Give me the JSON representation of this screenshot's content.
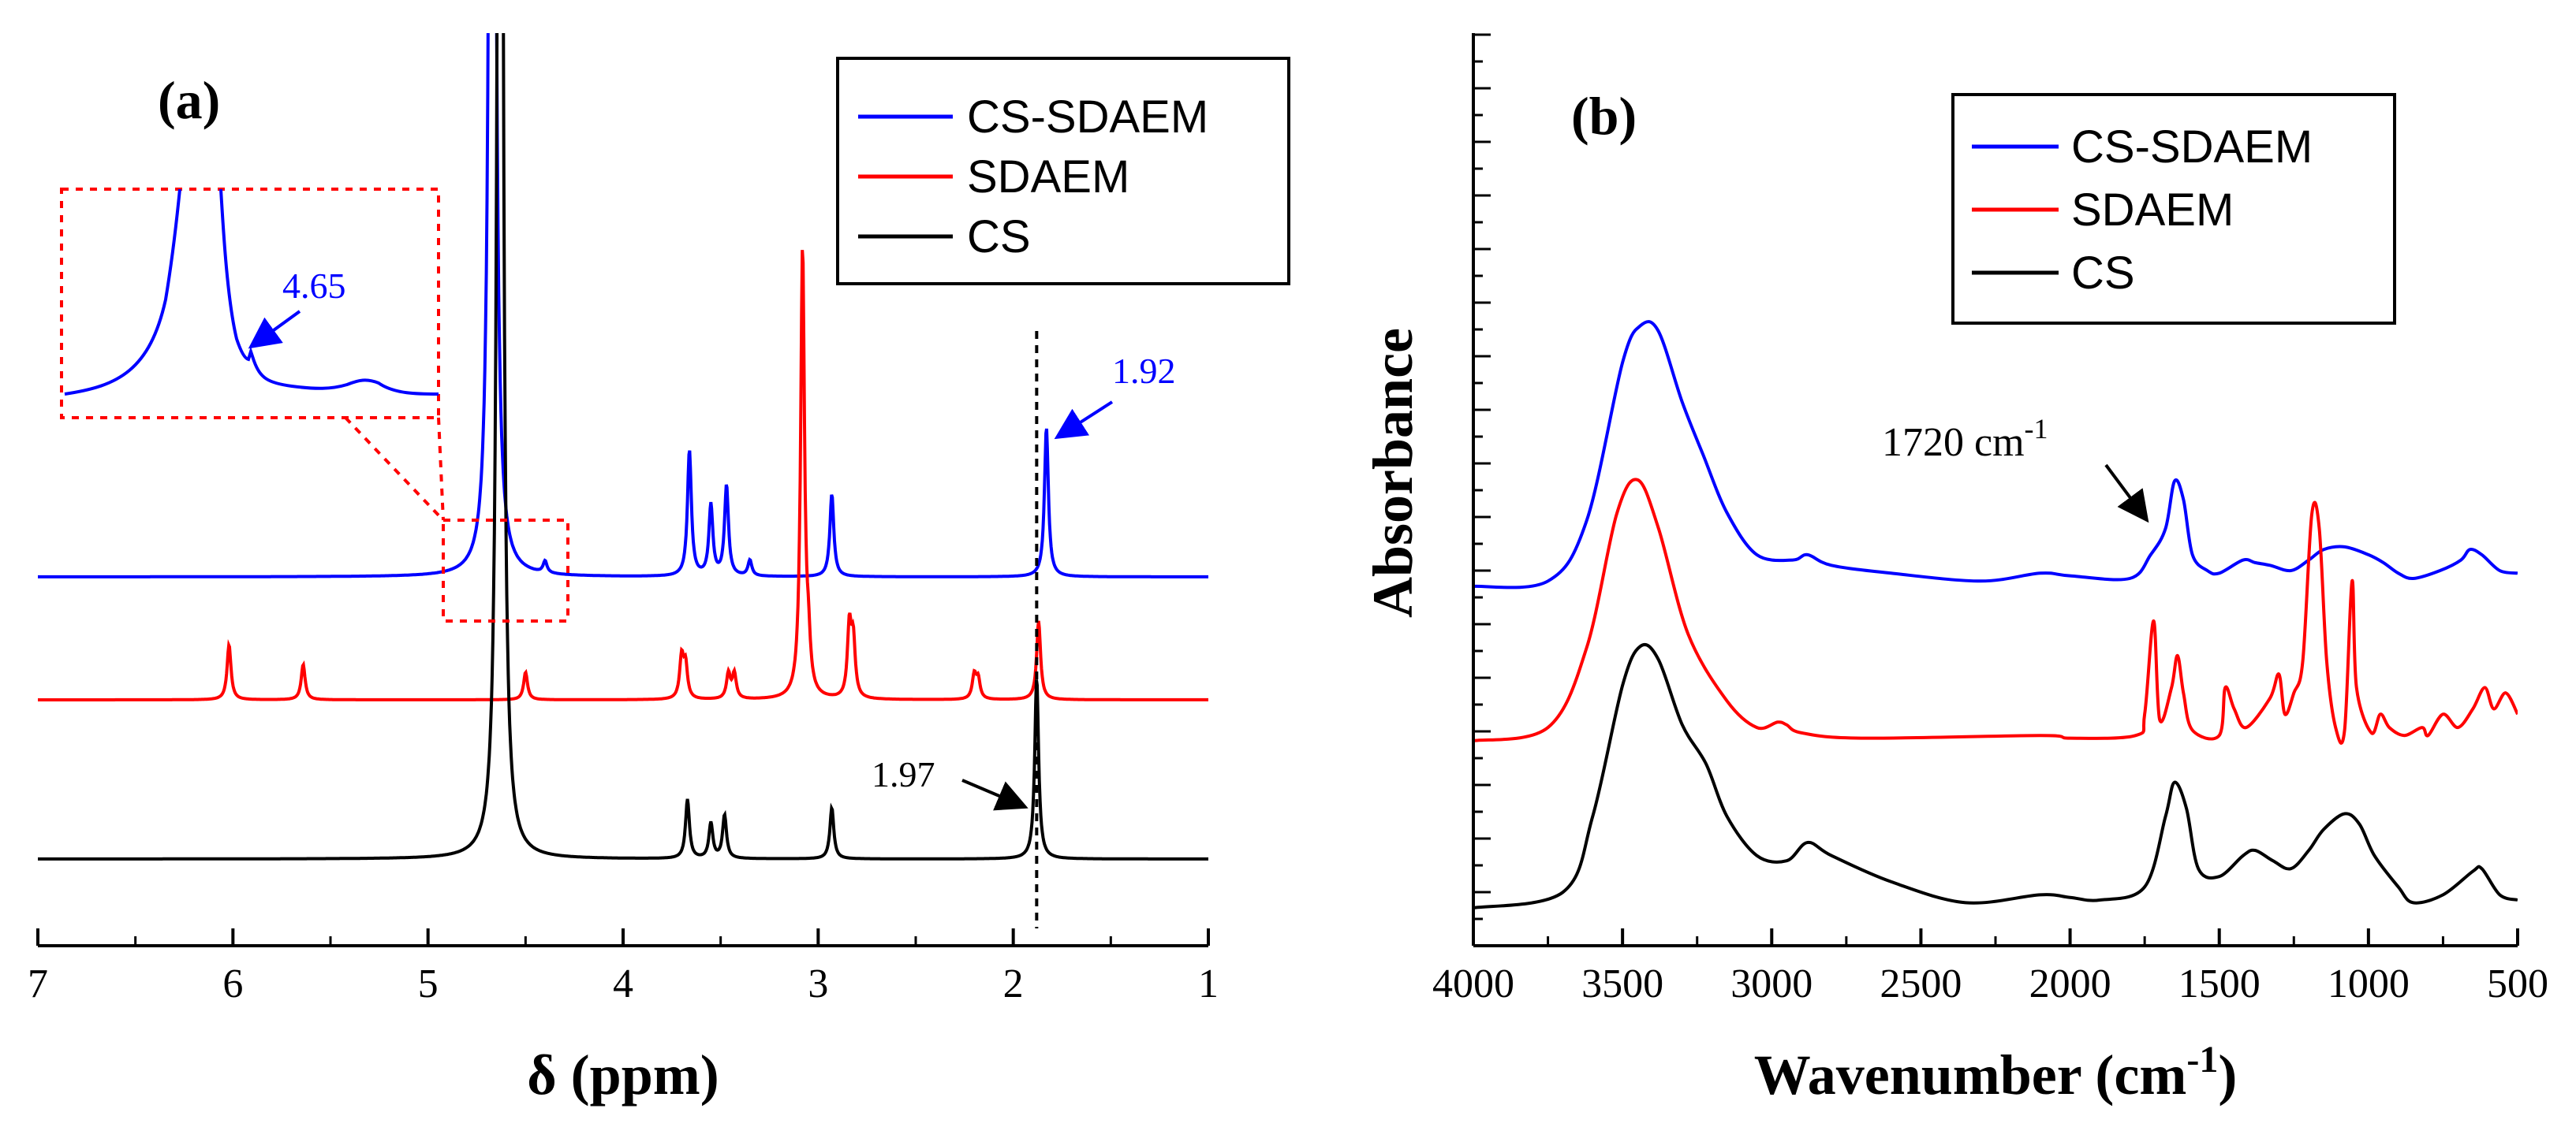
{
  "chart_data": [
    {
      "panel": "(a)",
      "type": "line",
      "title": "",
      "xlabel": "δ (ppm)",
      "ylabel": "",
      "xlim": [
        7,
        1
      ],
      "x_reversed": true,
      "x_ticks": [
        7,
        6,
        5,
        4,
        3,
        2,
        1
      ],
      "series": [
        {
          "name": "CS-SDAEM",
          "color": "#0000ff",
          "offset": 2,
          "peaks": [
            [
              4.67,
              30
            ],
            [
              4.4,
              0.15
            ],
            [
              3.66,
              1.6
            ],
            [
              3.55,
              0.9
            ],
            [
              3.47,
              1.15
            ],
            [
              3.35,
              0.2
            ],
            [
              2.93,
              1.05
            ],
            [
              1.83,
              1.9
            ]
          ]
        },
        {
          "name": "SDAEM",
          "color": "#ff0000",
          "offset": 1,
          "peaks": [
            [
              6.02,
              0.7
            ],
            [
              5.64,
              0.45
            ],
            [
              4.5,
              0.35
            ],
            [
              3.7,
              0.52
            ],
            [
              3.68,
              0.42
            ],
            [
              3.46,
              0.32
            ],
            [
              3.43,
              0.32
            ],
            [
              3.08,
              5.7
            ],
            [
              3.05,
              0.5
            ],
            [
              2.84,
              0.9
            ],
            [
              2.82,
              0.7
            ],
            [
              2.2,
              0.3
            ],
            [
              2.18,
              0.25
            ],
            [
              1.87,
              1.0
            ]
          ]
        },
        {
          "name": "CS",
          "color": "#000000",
          "offset": 0,
          "peaks": [
            [
              4.63,
              30
            ],
            [
              3.67,
              0.75
            ],
            [
              3.55,
              0.45
            ],
            [
              3.48,
              0.55
            ],
            [
              2.93,
              0.65
            ],
            [
              1.88,
              2.3
            ]
          ]
        }
      ],
      "legend": [
        "CS-SDAEM",
        "SDAEM",
        "CS"
      ],
      "legend_position": "top-right",
      "annotations": [
        {
          "text": "4.65",
          "color": "#0000ff",
          "location": "inset"
        },
        {
          "text": "1.92",
          "color": "#0000ff",
          "x": 1.84
        },
        {
          "text": "1.97",
          "color": "#000000",
          "x": 1.88
        }
      ],
      "reference_line_x": 1.88
    },
    {
      "panel": "(b)",
      "type": "line",
      "title": "",
      "xlabel": "Wavenumber (cm",
      "xlabel_superscript": "-1",
      "xlabel_suffix": ")",
      "ylabel": "Absorbance",
      "xlim": [
        4000,
        500
      ],
      "x_reversed": true,
      "x_ticks": [
        4000,
        3500,
        3000,
        2500,
        2000,
        1500,
        1000,
        500
      ],
      "series": [
        {
          "name": "CS-SDAEM",
          "color": "#0000ff",
          "offset": 2,
          "points": [
            [
              4000,
              0.0
            ],
            [
              3750,
              0.02
            ],
            [
              3620,
              0.25
            ],
            [
              3500,
              0.85
            ],
            [
              3440,
              0.99
            ],
            [
              3380,
              0.97
            ],
            [
              3300,
              0.7
            ],
            [
              3230,
              0.5
            ],
            [
              3150,
              0.28
            ],
            [
              3050,
              0.12
            ],
            [
              2930,
              0.1
            ],
            [
              2880,
              0.12
            ],
            [
              2800,
              0.08
            ],
            [
              2600,
              0.05
            ],
            [
              2300,
              0.02
            ],
            [
              2100,
              0.05
            ],
            [
              2000,
              0.04
            ],
            [
              1800,
              0.03
            ],
            [
              1730,
              0.12
            ],
            [
              1680,
              0.22
            ],
            [
              1650,
              0.4
            ],
            [
              1620,
              0.33
            ],
            [
              1590,
              0.12
            ],
            [
              1540,
              0.06
            ],
            [
              1500,
              0.05
            ],
            [
              1420,
              0.1
            ],
            [
              1380,
              0.09
            ],
            [
              1330,
              0.08
            ],
            [
              1260,
              0.06
            ],
            [
              1200,
              0.1
            ],
            [
              1150,
              0.14
            ],
            [
              1080,
              0.15
            ],
            [
              1000,
              0.12
            ],
            [
              950,
              0.09
            ],
            [
              900,
              0.05
            ],
            [
              850,
              0.03
            ],
            [
              760,
              0.06
            ],
            [
              690,
              0.1
            ],
            [
              660,
              0.14
            ],
            [
              620,
              0.12
            ],
            [
              560,
              0.06
            ],
            [
              500,
              0.05
            ]
          ]
        },
        {
          "name": "SDAEM",
          "color": "#ff0000",
          "offset": 1,
          "points": [
            [
              4000,
              0.0
            ],
            [
              3750,
              0.05
            ],
            [
              3620,
              0.35
            ],
            [
              3520,
              0.85
            ],
            [
              3450,
              0.98
            ],
            [
              3380,
              0.8
            ],
            [
              3280,
              0.4
            ],
            [
              3150,
              0.15
            ],
            [
              3050,
              0.05
            ],
            [
              2980,
              0.07
            ],
            [
              2950,
              0.06
            ],
            [
              2900,
              0.03
            ],
            [
              2700,
              0.01
            ],
            [
              2100,
              0.02
            ],
            [
              2000,
              0.01
            ],
            [
              1780,
              0.02
            ],
            [
              1750,
              0.1
            ],
            [
              1720,
              0.45
            ],
            [
              1700,
              0.08
            ],
            [
              1660,
              0.2
            ],
            [
              1640,
              0.32
            ],
            [
              1620,
              0.18
            ],
            [
              1590,
              0.04
            ],
            [
              1500,
              0.02
            ],
            [
              1480,
              0.2
            ],
            [
              1450,
              0.12
            ],
            [
              1410,
              0.05
            ],
            [
              1330,
              0.16
            ],
            [
              1300,
              0.25
            ],
            [
              1280,
              0.1
            ],
            [
              1250,
              0.18
            ],
            [
              1220,
              0.3
            ],
            [
              1190,
              0.85
            ],
            [
              1165,
              0.8
            ],
            [
              1140,
              0.3
            ],
            [
              1110,
              0.05
            ],
            [
              1080,
              0.04
            ],
            [
              1055,
              0.6
            ],
            [
              1040,
              0.2
            ],
            [
              990,
              0.03
            ],
            [
              960,
              0.1
            ],
            [
              930,
              0.05
            ],
            [
              880,
              0.02
            ],
            [
              820,
              0.05
            ],
            [
              800,
              0.02
            ],
            [
              750,
              0.1
            ],
            [
              700,
              0.05
            ],
            [
              650,
              0.12
            ],
            [
              610,
              0.2
            ],
            [
              580,
              0.12
            ],
            [
              540,
              0.18
            ],
            [
              500,
              0.1
            ]
          ]
        },
        {
          "name": "CS",
          "color": "#000000",
          "offset": 0,
          "points": [
            [
              4000,
              0.0
            ],
            [
              3700,
              0.06
            ],
            [
              3600,
              0.35
            ],
            [
              3500,
              0.85
            ],
            [
              3440,
              1.0
            ],
            [
              3380,
              0.95
            ],
            [
              3300,
              0.7
            ],
            [
              3220,
              0.55
            ],
            [
              3150,
              0.35
            ],
            [
              3050,
              0.2
            ],
            [
              2950,
              0.18
            ],
            [
              2880,
              0.25
            ],
            [
              2800,
              0.2
            ],
            [
              2600,
              0.1
            ],
            [
              2350,
              0.02
            ],
            [
              2100,
              0.05
            ],
            [
              2000,
              0.04
            ],
            [
              1900,
              0.03
            ],
            [
              1750,
              0.08
            ],
            [
              1680,
              0.35
            ],
            [
              1650,
              0.48
            ],
            [
              1610,
              0.38
            ],
            [
              1570,
              0.15
            ],
            [
              1500,
              0.12
            ],
            [
              1420,
              0.2
            ],
            [
              1380,
              0.22
            ],
            [
              1320,
              0.18
            ],
            [
              1260,
              0.15
            ],
            [
              1200,
              0.22
            ],
            [
              1150,
              0.3
            ],
            [
              1080,
              0.36
            ],
            [
              1030,
              0.32
            ],
            [
              980,
              0.2
            ],
            [
              900,
              0.08
            ],
            [
              850,
              0.02
            ],
            [
              750,
              0.05
            ],
            [
              650,
              0.14
            ],
            [
              620,
              0.15
            ],
            [
              560,
              0.05
            ],
            [
              500,
              0.03
            ]
          ]
        }
      ],
      "legend": [
        "CS-SDAEM",
        "SDAEM",
        "CS"
      ],
      "legend_position": "top-right",
      "annotations": [
        {
          "text": "1720 cm",
          "superscript": "-1",
          "color": "#000000",
          "x": 1720
        }
      ]
    }
  ]
}
